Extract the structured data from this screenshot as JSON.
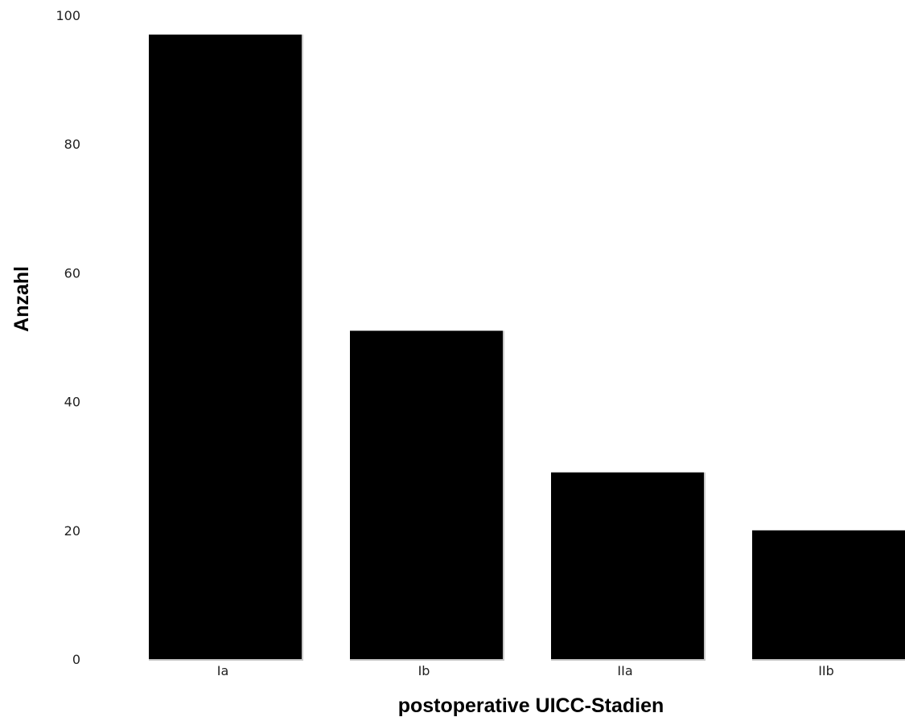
{
  "chart_data": {
    "type": "bar",
    "title": "",
    "xlabel": "postoperative UICC-Stadien",
    "ylabel": "Anzahl",
    "categories": [
      "Ia",
      "Ib",
      "IIa",
      "IIb"
    ],
    "values": [
      97,
      51,
      29,
      20
    ],
    "ylim": [
      0,
      100
    ],
    "yticks": [
      0,
      20,
      40,
      60,
      80,
      100
    ],
    "grid": false,
    "colors": {
      "bar": "#000000",
      "bar_shadow": "#c8c8c8",
      "text": "#222222"
    }
  }
}
